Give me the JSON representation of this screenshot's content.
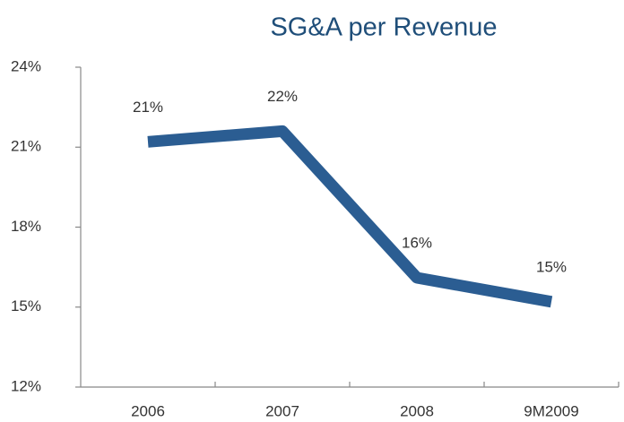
{
  "chart_data": {
    "type": "line",
    "title": "SG&A per Revenue",
    "categories": [
      "2006",
      "2007",
      "2008",
      "9M2009"
    ],
    "values": [
      21.2,
      21.6,
      16.1,
      15.2
    ],
    "value_labels": [
      "21%",
      "22%",
      "16%",
      "15%"
    ],
    "color": "#2b5d92",
    "ylim": [
      12,
      24
    ],
    "yticks": [
      {
        "value": 12,
        "label": "12%"
      },
      {
        "value": 15,
        "label": "15%"
      },
      {
        "value": 18,
        "label": "18%"
      },
      {
        "value": 21,
        "label": "21%"
      },
      {
        "value": 24,
        "label": "24%"
      }
    ],
    "grid": false
  }
}
